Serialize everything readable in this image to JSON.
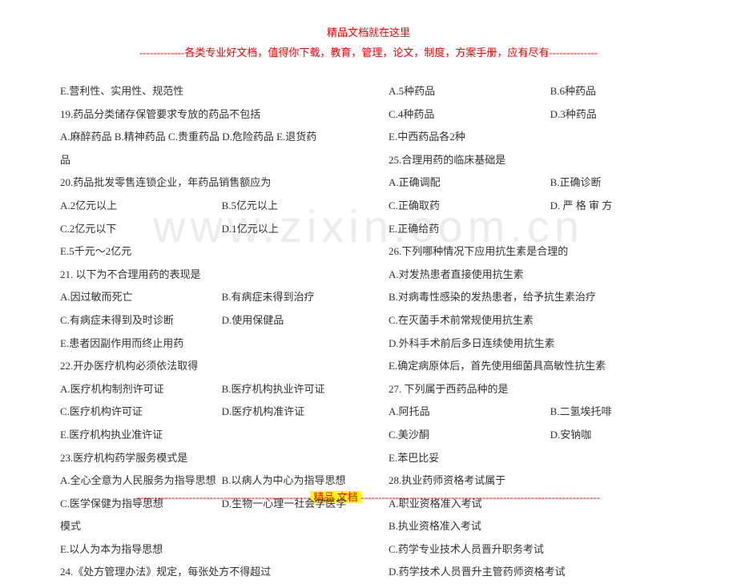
{
  "header": {
    "title": "精品文档就在这里",
    "subtitle": "-------------各类专业好文档，值得你下载，教育，管理，论文，制度，方案手册，应有尽有--------------"
  },
  "watermark": "www.zixin.com.cn",
  "left": {
    "l1": "E.营利性、实用性、规范性",
    "l2": "19.药品分类储存保管要求专放的药品不包括",
    "l3": "A.麻醉药品  B.精神药品  C.贵重药品  D.危险药品  E.退货药",
    "l4": "品",
    "l5": "20.药品批发零售连锁企业，年药品销售额应为",
    "l6a": "A.2亿元以上",
    "l6b": "B.5亿元以上",
    "l7a": "C.2亿元以下",
    "l7b": "D.1亿元以上",
    "l8": "E.5千元～2亿元",
    "l9": "21. 以下为不合理用药的表现是",
    "l10a": "A.因过敏而死亡",
    "l10b": "B.有病症未得到治疗",
    "l11a": "C.有病症未得到及时诊断",
    "l11b": "D.使用保健品",
    "l12": "E.患者因副作用而终止用药",
    "l13": "22.开办医疗机构必须依法取得",
    "l14a": "A.医疗机构制剂许可证",
    "l14b": "B.医疗机构执业许可证",
    "l15a": "C.医疗机构许可证",
    "l15b": "D.医疗机构准许证",
    "l16": "E.医疗机构执业准许证",
    "l17": "23.医疗机构药学服务模式是",
    "l18a": "A.全心全意为人民服务为指导思想",
    "l18b": "B.以病人为中心为指导思想",
    "l19a": "C.医学保健为指导思想",
    "l19b": "D.生物一心理一社会学医学",
    "l20": "模式",
    "l21": "E.以人为本为指导思想",
    "l22": "24.《处方管理办法》规定，每张处方不得超过"
  },
  "right": {
    "r1a": "A.5种药品",
    "r1b": "B.6种药品",
    "r2a": "C.4种药品",
    "r2b": "D.3种药品",
    "r3": "E.中西药品各2种",
    "r4": "25.合理用药的临床基础是",
    "r5a": "A.正确调配",
    "r5b": "B.正确诊断",
    "r6a": "C.正确取药",
    "r6b": "D. 严 格 审 方",
    "r7": "E.正确给药",
    "r8": "26.下列哪种情况下应用抗生素是合理的",
    "r9": "A.对发热患者直接使用抗生素",
    "r10": "B.对病毒性感染的发热患者，给予抗生素治疗",
    "r11": "C.在灭菌手术前常规使用抗生素",
    "r12": "D.外科手术前后多日连续使用抗生素",
    "r13": "E.确定病原体后，首先使用细菌具高敏性抗生素",
    "r14": "27. 下列属于西药品种的是",
    "r15a": "A.阿托品",
    "r15b": "B.二氢埃托啡",
    "r16a": "C.美沙酮",
    "r16b": "D.安钠咖",
    "r17": "E.苯巴比妥",
    "r18": "28.执业药师资格考试属于",
    "r19": "A.职业资格准入考试",
    "r20": "B.执业资格准入考试",
    "r21": "C.药学专业技术人员晋升职务考试",
    "r22": "D.药学技术人员晋升主管药师资格考试"
  },
  "footer": {
    "dashL": "--------------------------------------------------",
    "mid": "精品   文档",
    "dashR": "---------------------------------------------------------------------"
  }
}
